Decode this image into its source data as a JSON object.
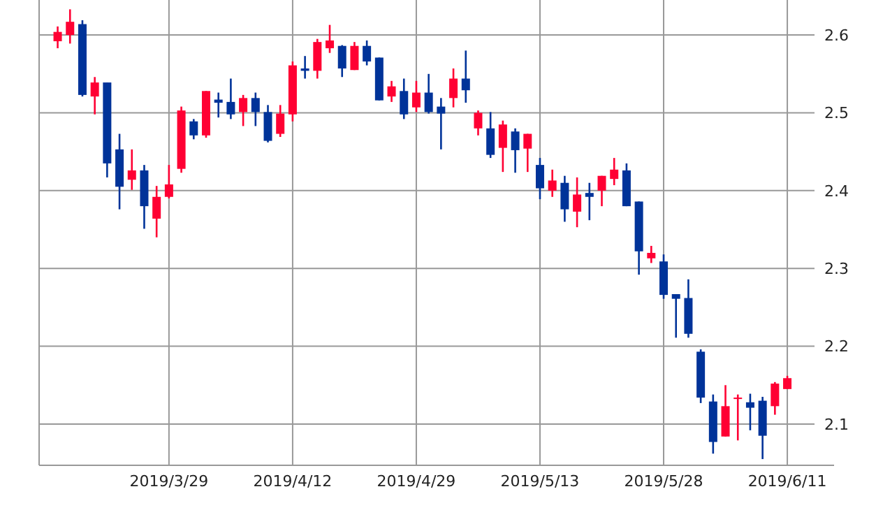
{
  "chart_data": {
    "type": "candlestick",
    "categories": [
      null,
      null,
      null,
      null,
      null,
      null,
      null,
      null,
      null,
      "2019/3/29",
      null,
      null,
      null,
      null,
      null,
      null,
      null,
      null,
      null,
      "2019/4/12",
      null,
      null,
      null,
      null,
      null,
      null,
      null,
      null,
      null,
      "2019/4/29",
      null,
      null,
      null,
      null,
      null,
      null,
      null,
      null,
      null,
      "2019/5/13",
      null,
      null,
      null,
      null,
      null,
      null,
      null,
      null,
      null,
      "2019/5/28",
      null,
      null,
      null,
      null,
      null,
      null,
      null,
      null,
      null,
      "2019/6/11"
    ],
    "ohlc": [
      [
        2.592,
        2.611,
        2.583,
        2.604
      ],
      [
        2.6,
        2.633,
        2.589,
        2.617
      ],
      [
        2.614,
        2.619,
        2.521,
        2.523
      ],
      [
        2.521,
        2.546,
        2.498,
        2.539
      ],
      [
        2.539,
        2.539,
        2.417,
        2.435
      ],
      [
        2.453,
        2.473,
        2.376,
        2.405
      ],
      [
        2.414,
        2.453,
        2.401,
        2.426
      ],
      [
        2.426,
        2.433,
        2.351,
        2.38
      ],
      [
        2.364,
        2.406,
        2.34,
        2.392
      ],
      [
        2.392,
        2.433,
        2.39,
        2.408
      ],
      [
        2.428,
        2.508,
        2.423,
        2.503
      ],
      [
        2.489,
        2.492,
        2.466,
        2.471
      ],
      [
        2.471,
        2.528,
        2.468,
        2.528
      ],
      [
        2.517,
        2.526,
        2.494,
        2.513
      ],
      [
        2.514,
        2.544,
        2.492,
        2.498
      ],
      [
        2.501,
        2.523,
        2.483,
        2.519
      ],
      [
        2.519,
        2.526,
        2.483,
        2.501
      ],
      [
        2.501,
        2.51,
        2.462,
        2.464
      ],
      [
        2.473,
        2.51,
        2.469,
        2.499
      ],
      [
        2.498,
        2.566,
        2.489,
        2.561
      ],
      [
        2.557,
        2.573,
        2.544,
        2.554
      ],
      [
        2.554,
        2.595,
        2.544,
        2.591
      ],
      [
        2.583,
        2.613,
        2.577,
        2.593
      ],
      [
        2.586,
        2.587,
        2.546,
        2.557
      ],
      [
        2.555,
        2.591,
        2.555,
        2.586
      ],
      [
        2.586,
        2.593,
        2.561,
        2.566
      ],
      [
        2.571,
        2.571,
        2.516,
        2.516
      ],
      [
        2.521,
        2.541,
        2.514,
        2.534
      ],
      [
        2.528,
        2.544,
        2.492,
        2.498
      ],
      [
        2.507,
        2.541,
        2.501,
        2.526
      ],
      [
        2.526,
        2.55,
        2.499,
        2.501
      ],
      [
        2.508,
        2.519,
        2.453,
        2.499
      ],
      [
        2.519,
        2.557,
        2.507,
        2.544
      ],
      [
        2.544,
        2.58,
        2.513,
        2.529
      ],
      [
        2.48,
        2.503,
        2.471,
        2.5
      ],
      [
        2.48,
        2.501,
        2.442,
        2.446
      ],
      [
        2.455,
        2.49,
        2.424,
        2.485
      ],
      [
        2.476,
        2.48,
        2.423,
        2.452
      ],
      [
        2.454,
        2.473,
        2.424,
        2.473
      ],
      [
        2.433,
        2.442,
        2.389,
        2.403
      ],
      [
        2.4,
        2.427,
        2.392,
        2.413
      ],
      [
        2.41,
        2.419,
        2.36,
        2.376
      ],
      [
        2.373,
        2.417,
        2.353,
        2.395
      ],
      [
        2.397,
        2.41,
        2.362,
        2.392
      ],
      [
        2.4,
        2.419,
        2.38,
        2.419
      ],
      [
        2.415,
        2.442,
        2.407,
        2.427
      ],
      [
        2.426,
        2.435,
        2.38,
        2.38
      ],
      [
        2.386,
        2.386,
        2.292,
        2.322
      ],
      [
        2.313,
        2.329,
        2.307,
        2.32
      ],
      [
        2.309,
        2.318,
        2.261,
        2.266
      ],
      [
        2.267,
        2.267,
        2.211,
        2.261
      ],
      [
        2.262,
        2.286,
        2.211,
        2.216
      ],
      [
        2.193,
        2.196,
        2.127,
        2.134
      ],
      [
        2.129,
        2.138,
        2.062,
        2.077
      ],
      [
        2.084,
        2.15,
        2.084,
        2.123
      ],
      [
        2.133,
        2.138,
        2.079,
        2.134
      ],
      [
        2.128,
        2.139,
        2.092,
        2.121
      ],
      [
        2.13,
        2.135,
        2.055,
        2.085
      ],
      [
        2.123,
        2.154,
        2.112,
        2.152
      ],
      [
        2.145,
        2.162,
        2.145,
        2.159
      ]
    ],
    "colors": [
      "#ff0033",
      "#ff0033",
      "#003399",
      "#ff0033",
      "#003399",
      "#003399",
      "#ff0033",
      "#003399",
      "#ff0033",
      "#ff0033",
      "#ff0033",
      "#003399",
      "#ff0033",
      "#003399",
      "#003399",
      "#ff0033",
      "#003399",
      "#003399",
      "#ff0033",
      "#ff0033",
      "#003399",
      "#ff0033",
      "#ff0033",
      "#003399",
      "#ff0033",
      "#003399",
      "#003399",
      "#ff0033",
      "#003399",
      "#ff0033",
      "#003399",
      "#003399",
      "#ff0033",
      "#003399",
      "#ff0033",
      "#003399",
      "#ff0033",
      "#003399",
      "#ff0033",
      "#003399",
      "#ff0033",
      "#003399",
      "#ff0033",
      "#003399",
      "#ff0033",
      "#ff0033",
      "#003399",
      "#003399",
      "#ff0033",
      "#003399",
      "#003399",
      "#003399",
      "#003399",
      "#003399",
      "#ff0033",
      "#ff0033",
      "#003399",
      "#003399",
      "#ff0033",
      "#ff0033"
    ],
    "ylim": [
      2.047,
      2.645
    ],
    "yticks": [
      2.1,
      2.2,
      2.3,
      2.4,
      2.5,
      2.6
    ],
    "grid": true
  }
}
